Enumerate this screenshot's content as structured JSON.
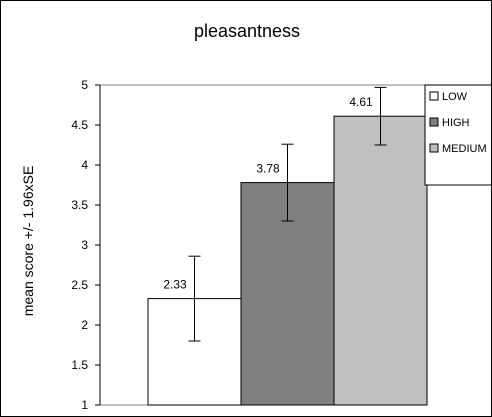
{
  "chart_data": {
    "type": "bar",
    "title": "pleasantness",
    "xlabel": "",
    "ylabel": "mean score +/- 1.96xSE",
    "ylim": [
      1,
      5
    ],
    "yticks": [
      1,
      1.5,
      2,
      2.5,
      3,
      3.5,
      4,
      4.5,
      5
    ],
    "ytick_labels": [
      "1",
      "1.5",
      "2",
      "2.5",
      "3",
      "3.5",
      "4",
      "4.5",
      "5"
    ],
    "grid": false,
    "legend_position": "top-right",
    "series": [
      {
        "name": "LOW",
        "value": 2.33,
        "label": "2.33",
        "error_low": 1.8,
        "error_high": 2.86,
        "color": "#ffffff"
      },
      {
        "name": "HIGH",
        "value": 3.78,
        "label": "3.78",
        "error_low": 3.3,
        "error_high": 4.26,
        "color": "#808080"
      },
      {
        "name": "MEDIUM",
        "value": 4.61,
        "label": "4.61",
        "error_low": 4.25,
        "error_high": 4.97,
        "color": "#c0c0c0"
      }
    ]
  }
}
